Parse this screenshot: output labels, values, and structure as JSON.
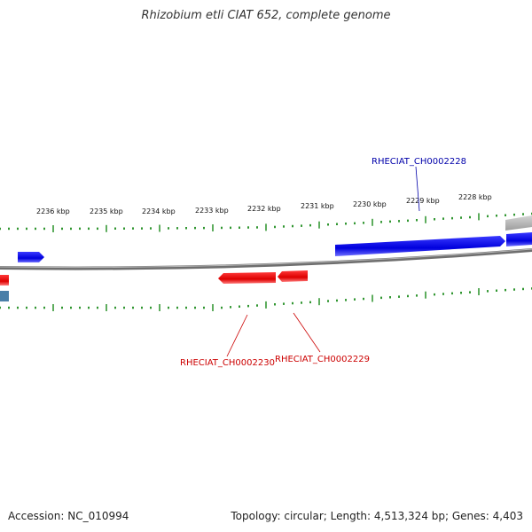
{
  "title": "Rhizobium etli CIAT 652, complete genome",
  "footer": {
    "accession": "Accession: NC_010994",
    "summary": "Topology: circular; Length: 4,513,324 bp; Genes: 4,403"
  },
  "scale_labels": [
    "2228 kbp",
    "2229 kbp",
    "2230 kbp",
    "2231 kbp",
    "2232 kbp",
    "2233 kbp",
    "2234 kbp",
    "2235 kbp",
    "2236 kbp"
  ],
  "genes": {
    "upper": "RHECIAT_CH0002228",
    "lower_a": "RHECIAT_CH0002230",
    "lower_b": "RHECIAT_CH0002229"
  },
  "colors": {
    "forward": "#0000ee",
    "reverse": "#ee0000",
    "backbone": "#888888",
    "ticks": "#1a8a1a",
    "other": "#b0b0b0",
    "steel": "#4a7fa8"
  }
}
